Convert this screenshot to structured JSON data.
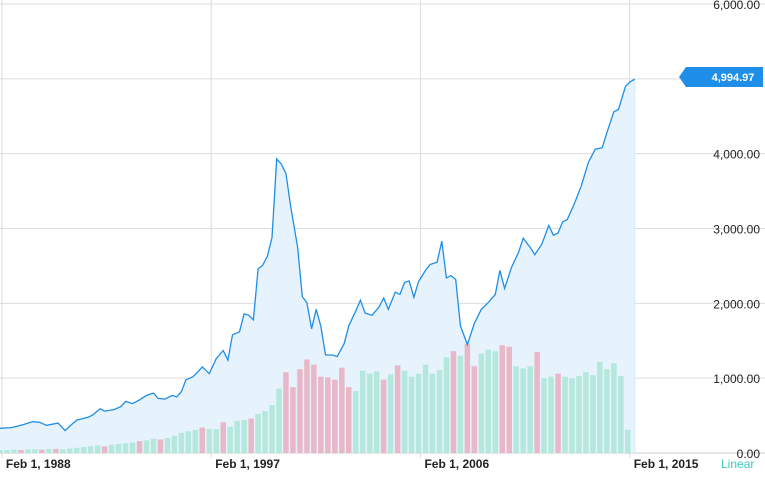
{
  "chart_data": {
    "type": "line",
    "title": "",
    "xlabel": "",
    "ylabel": "",
    "ylim": [
      0,
      6000
    ],
    "grid": true,
    "y_ticks": [
      0,
      1000,
      2000,
      3000,
      4000,
      5000,
      6000
    ],
    "y_tick_labels": [
      "0.00",
      "1,000.00",
      "2,000.00",
      "3,000.00",
      "4,000.00",
      "5,000.00",
      "6,000.00"
    ],
    "x_tick_labels": [
      "Feb 1, 1988",
      "Feb 1, 1997",
      "Feb 1, 2006",
      "Feb 1, 2015"
    ],
    "x_ticks": [
      1988.083,
      1997.083,
      2006.083,
      2015.083
    ],
    "xlim": [
      1988.0,
      2016.6
    ],
    "current_value_label": "4,994.97",
    "scale_label": "Linear",
    "line_color": "#1f8ee8",
    "area_color": "#e6f2fc",
    "volume_up_color": "#b4e8dc",
    "volume_down_color": "#e8b8c8",
    "series": [
      {
        "values": [
          [
            1988.0,
            330
          ],
          [
            1988.5,
            340
          ],
          [
            1989.0,
            380
          ],
          [
            1989.4,
            420
          ],
          [
            1989.7,
            410
          ],
          [
            1990.0,
            370
          ],
          [
            1990.5,
            400
          ],
          [
            1990.8,
            300
          ],
          [
            1991.0,
            360
          ],
          [
            1991.3,
            440
          ],
          [
            1991.8,
            480
          ],
          [
            1992.0,
            510
          ],
          [
            1992.3,
            590
          ],
          [
            1992.5,
            560
          ],
          [
            1992.9,
            580
          ],
          [
            1993.2,
            620
          ],
          [
            1993.4,
            690
          ],
          [
            1993.7,
            660
          ],
          [
            1994.0,
            710
          ],
          [
            1994.3,
            770
          ],
          [
            1994.6,
            800
          ],
          [
            1994.8,
            730
          ],
          [
            1995.1,
            720
          ],
          [
            1995.4,
            770
          ],
          [
            1995.6,
            750
          ],
          [
            1995.8,
            820
          ],
          [
            1996.0,
            980
          ],
          [
            1996.3,
            1020
          ],
          [
            1996.5,
            1080
          ],
          [
            1996.7,
            1150
          ],
          [
            1997.0,
            1060
          ],
          [
            1997.3,
            1260
          ],
          [
            1997.6,
            1370
          ],
          [
            1997.8,
            1240
          ],
          [
            1998.0,
            1580
          ],
          [
            1998.3,
            1620
          ],
          [
            1998.5,
            1860
          ],
          [
            1998.7,
            1840
          ],
          [
            1998.9,
            1780
          ],
          [
            1999.1,
            2460
          ],
          [
            1999.3,
            2510
          ],
          [
            1999.5,
            2630
          ],
          [
            1999.7,
            2880
          ],
          [
            1999.9,
            3930
          ],
          [
            2000.1,
            3860
          ],
          [
            2000.3,
            3730
          ],
          [
            2000.5,
            3300
          ],
          [
            2000.8,
            2750
          ],
          [
            2001.0,
            2090
          ],
          [
            2001.2,
            2010
          ],
          [
            2001.4,
            1660
          ],
          [
            2001.6,
            1920
          ],
          [
            2001.8,
            1690
          ],
          [
            2002.0,
            1310
          ],
          [
            2002.3,
            1310
          ],
          [
            2002.5,
            1290
          ],
          [
            2002.8,
            1460
          ],
          [
            2003.0,
            1700
          ],
          [
            2003.3,
            1900
          ],
          [
            2003.5,
            2040
          ],
          [
            2003.7,
            1870
          ],
          [
            2004.0,
            1840
          ],
          [
            2004.3,
            1950
          ],
          [
            2004.5,
            2070
          ],
          [
            2004.7,
            1920
          ],
          [
            2005.0,
            2150
          ],
          [
            2005.2,
            2120
          ],
          [
            2005.4,
            2280
          ],
          [
            2005.6,
            2300
          ],
          [
            2005.8,
            2080
          ],
          [
            2006.0,
            2290
          ],
          [
            2006.3,
            2440
          ],
          [
            2006.5,
            2520
          ],
          [
            2006.8,
            2550
          ],
          [
            2007.0,
            2830
          ],
          [
            2007.2,
            2340
          ],
          [
            2007.4,
            2370
          ],
          [
            2007.6,
            2320
          ],
          [
            2007.8,
            1700
          ],
          [
            2008.1,
            1450
          ],
          [
            2008.4,
            1730
          ],
          [
            2008.7,
            1920
          ],
          [
            2009.0,
            2010
          ],
          [
            2009.3,
            2120
          ],
          [
            2009.5,
            2440
          ],
          [
            2009.7,
            2200
          ],
          [
            2010.0,
            2480
          ],
          [
            2010.3,
            2680
          ],
          [
            2010.5,
            2870
          ],
          [
            2010.8,
            2750
          ],
          [
            2011.0,
            2650
          ],
          [
            2011.3,
            2790
          ],
          [
            2011.6,
            3040
          ],
          [
            2011.8,
            2910
          ],
          [
            2012.0,
            2940
          ],
          [
            2012.2,
            3090
          ],
          [
            2012.4,
            3120
          ],
          [
            2012.7,
            3330
          ],
          [
            2013.0,
            3570
          ],
          [
            2013.3,
            3880
          ],
          [
            2013.6,
            4060
          ],
          [
            2013.9,
            4080
          ],
          [
            2014.1,
            4280
          ],
          [
            2014.4,
            4560
          ],
          [
            2014.6,
            4590
          ],
          [
            2014.9,
            4900
          ],
          [
            2015.1,
            4960
          ],
          [
            2015.3,
            4994.97
          ]
        ]
      }
    ],
    "volume": {
      "max_plot_value": 6000,
      "bars": [
        [
          1988.0,
          40,
          "u"
        ],
        [
          1988.3,
          40,
          "u"
        ],
        [
          1988.6,
          45,
          "u"
        ],
        [
          1988.9,
          40,
          "d"
        ],
        [
          1989.2,
          50,
          "u"
        ],
        [
          1989.5,
          50,
          "u"
        ],
        [
          1989.8,
          45,
          "d"
        ],
        [
          1990.1,
          55,
          "u"
        ],
        [
          1990.4,
          55,
          "d"
        ],
        [
          1990.7,
          50,
          "u"
        ],
        [
          1991.0,
          60,
          "u"
        ],
        [
          1991.3,
          70,
          "u"
        ],
        [
          1991.6,
          80,
          "u"
        ],
        [
          1991.9,
          90,
          "u"
        ],
        [
          1992.2,
          100,
          "u"
        ],
        [
          1992.5,
          90,
          "d"
        ],
        [
          1992.8,
          110,
          "u"
        ],
        [
          1993.1,
          120,
          "u"
        ],
        [
          1993.4,
          130,
          "u"
        ],
        [
          1993.7,
          140,
          "u"
        ],
        [
          1994.0,
          160,
          "d"
        ],
        [
          1994.3,
          170,
          "u"
        ],
        [
          1994.6,
          190,
          "u"
        ],
        [
          1994.9,
          180,
          "d"
        ],
        [
          1995.2,
          200,
          "u"
        ],
        [
          1995.5,
          230,
          "u"
        ],
        [
          1995.8,
          270,
          "u"
        ],
        [
          1996.1,
          290,
          "u"
        ],
        [
          1996.4,
          310,
          "u"
        ],
        [
          1996.7,
          340,
          "d"
        ],
        [
          1997.0,
          320,
          "u"
        ],
        [
          1997.3,
          320,
          "u"
        ],
        [
          1997.6,
          410,
          "d"
        ],
        [
          1997.9,
          350,
          "u"
        ],
        [
          1998.2,
          430,
          "u"
        ],
        [
          1998.5,
          440,
          "u"
        ],
        [
          1998.8,
          460,
          "d"
        ],
        [
          1999.1,
          520,
          "u"
        ],
        [
          1999.4,
          560,
          "u"
        ],
        [
          1999.7,
          640,
          "u"
        ],
        [
          2000.0,
          860,
          "u"
        ],
        [
          2000.3,
          1080,
          "d"
        ],
        [
          2000.6,
          880,
          "d"
        ],
        [
          2000.9,
          1120,
          "d"
        ],
        [
          2001.2,
          1250,
          "d"
        ],
        [
          2001.5,
          1180,
          "d"
        ],
        [
          2001.8,
          1020,
          "d"
        ],
        [
          2002.1,
          1010,
          "d"
        ],
        [
          2002.4,
          980,
          "d"
        ],
        [
          2002.7,
          1140,
          "d"
        ],
        [
          2003.0,
          880,
          "d"
        ],
        [
          2003.3,
          830,
          "u"
        ],
        [
          2003.6,
          1100,
          "u"
        ],
        [
          2003.9,
          1060,
          "u"
        ],
        [
          2004.2,
          1090,
          "u"
        ],
        [
          2004.5,
          980,
          "d"
        ],
        [
          2004.8,
          1050,
          "u"
        ],
        [
          2005.1,
          1170,
          "d"
        ],
        [
          2005.4,
          1100,
          "u"
        ],
        [
          2005.7,
          1020,
          "u"
        ],
        [
          2006.0,
          1060,
          "u"
        ],
        [
          2006.3,
          1180,
          "u"
        ],
        [
          2006.6,
          1060,
          "u"
        ],
        [
          2006.9,
          1110,
          "u"
        ],
        [
          2007.2,
          1280,
          "u"
        ],
        [
          2007.5,
          1360,
          "d"
        ],
        [
          2007.8,
          1300,
          "u"
        ],
        [
          2008.1,
          1460,
          "d"
        ],
        [
          2008.4,
          1160,
          "d"
        ],
        [
          2008.7,
          1330,
          "u"
        ],
        [
          2009.0,
          1380,
          "u"
        ],
        [
          2009.3,
          1360,
          "u"
        ],
        [
          2009.6,
          1440,
          "d"
        ],
        [
          2009.9,
          1420,
          "d"
        ],
        [
          2010.2,
          1160,
          "u"
        ],
        [
          2010.5,
          1130,
          "u"
        ],
        [
          2010.8,
          1160,
          "u"
        ],
        [
          2011.1,
          1350,
          "d"
        ],
        [
          2011.4,
          1000,
          "u"
        ],
        [
          2011.7,
          1020,
          "u"
        ],
        [
          2012.0,
          1060,
          "d"
        ],
        [
          2012.3,
          1020,
          "u"
        ],
        [
          2012.6,
          1000,
          "u"
        ],
        [
          2012.9,
          1030,
          "u"
        ],
        [
          2013.2,
          1080,
          "u"
        ],
        [
          2013.5,
          1040,
          "u"
        ],
        [
          2013.8,
          1220,
          "u"
        ],
        [
          2014.1,
          1120,
          "u"
        ],
        [
          2014.4,
          1200,
          "u"
        ],
        [
          2014.7,
          1030,
          "u"
        ],
        [
          2015.0,
          310,
          "u"
        ]
      ]
    }
  }
}
